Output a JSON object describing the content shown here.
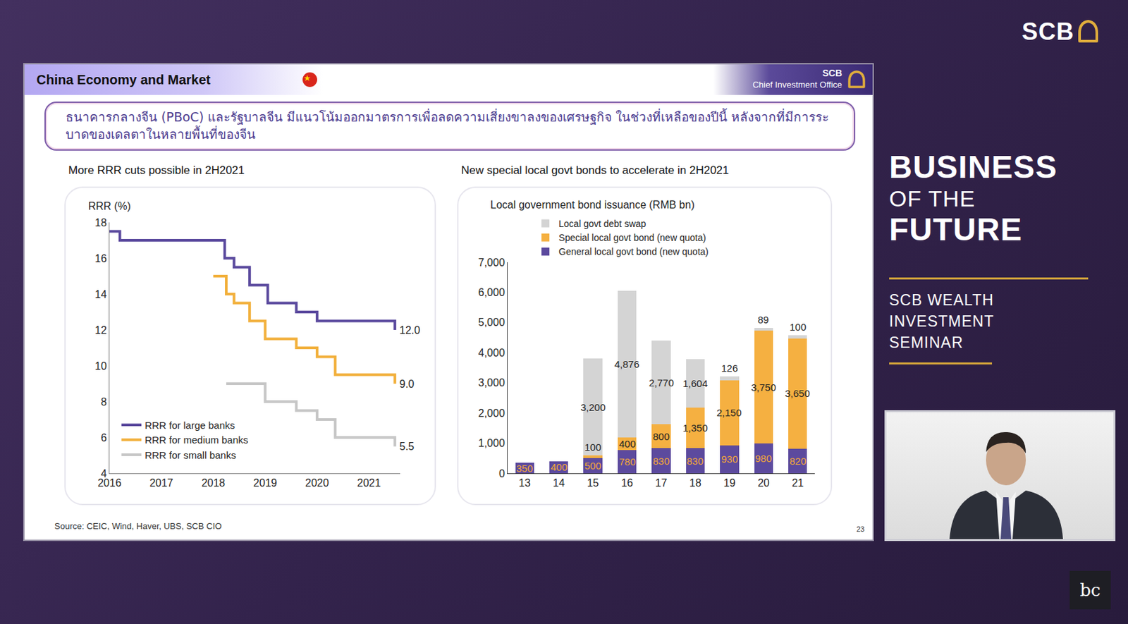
{
  "header": {
    "section": "China Economy and Market",
    "brand": "SCB",
    "office": "Chief Investment Office"
  },
  "summary": "ธนาคารกลางจีน (PBoC) และรัฐบาลจีน มีแนวโน้มออกมาตรการเพื่อลดความเสี่ยงขาลงของเศรษฐกิจ ในช่วงที่เหลือของปีนี้ หลังจากที่มีการระบาดของเดลตาในหลายพื้นที่ของจีน",
  "source": "Source: CEIC, Wind, Haver, UBS, SCB CIO",
  "page_number": "23",
  "sidebar": {
    "logo": "SCB",
    "title_lines": [
      "BUSINESS",
      "OF THE",
      "FUTURE"
    ],
    "subtitle_lines": [
      "SCB WEALTH",
      "INVESTMENT",
      "SEMINAR"
    ],
    "watermark": "bc"
  },
  "chart_data": [
    {
      "type": "line",
      "title": "More RRR cuts possible in 2H2021",
      "y_label": "RRR (%)",
      "xlim": [
        2016,
        2021.6
      ],
      "xticks": [
        2016,
        2017,
        2018,
        2019,
        2020,
        2021
      ],
      "ylim": [
        4,
        18
      ],
      "yticks": [
        4,
        6,
        8,
        10,
        12,
        14,
        16,
        18
      ],
      "grid": false,
      "legend": "bottom-left",
      "line_style": "step",
      "series": [
        {
          "name": "RRR for large banks",
          "color": "#5b4a9e",
          "x": [
            2016.0,
            2016.2,
            2018.22,
            2018.4,
            2018.7,
            2019.05,
            2019.6,
            2020.0,
            2021.5
          ],
          "values": [
            17.5,
            17.0,
            16.0,
            15.5,
            14.5,
            13.5,
            13.0,
            12.5,
            12.0
          ],
          "value_labels": [
            null,
            null,
            null,
            null,
            null,
            null,
            null,
            null,
            "12.0"
          ]
        },
        {
          "name": "RRR for medium banks",
          "color": "#f2b03c",
          "x": [
            2018.0,
            2018.25,
            2018.4,
            2018.7,
            2019.0,
            2019.6,
            2020.0,
            2020.35,
            2021.5
          ],
          "values": [
            15.0,
            14.0,
            13.5,
            12.5,
            11.5,
            11.0,
            10.5,
            9.5,
            9.0
          ],
          "value_labels": [
            null,
            null,
            null,
            null,
            null,
            null,
            null,
            null,
            "9.0"
          ]
        },
        {
          "name": "RRR for small banks",
          "color": "#c6c6c6",
          "x": [
            2018.25,
            2019.0,
            2019.6,
            2020.0,
            2020.35,
            2021.5
          ],
          "values": [
            9.0,
            8.0,
            7.5,
            7.0,
            6.0,
            5.5
          ],
          "value_labels": [
            null,
            null,
            null,
            null,
            null,
            "5.5"
          ]
        }
      ]
    },
    {
      "type": "bar",
      "stacked": true,
      "title": "New special local govt bonds to accelerate in 2H2021",
      "y_label": "Local government bond issuance (RMB bn)",
      "categories": [
        "13",
        "14",
        "15",
        "16",
        "17",
        "18",
        "19",
        "20",
        "21"
      ],
      "ylim": [
        0,
        7000
      ],
      "yticks": [
        0,
        {
          "value": 1000,
          "label": "1,000"
        },
        {
          "value": 2000,
          "label": "2,000"
        },
        {
          "value": 3000,
          "label": "3,000"
        },
        {
          "value": 4000,
          "label": "4,000"
        },
        {
          "value": 5000,
          "label": "5,000"
        },
        {
          "value": 6000,
          "label": "6,000"
        },
        {
          "value": 7000,
          "label": "7,000"
        }
      ],
      "grid": false,
      "legend": "top-left",
      "data_labels": true,
      "series": [
        {
          "name": "General local govt bond (new quota)",
          "color": "#5c4a9e",
          "values": [
            350,
            400,
            500,
            780,
            830,
            830,
            930,
            980,
            820
          ]
        },
        {
          "name": "Special local govt bond (new quota)",
          "color": "#f5b041",
          "values": [
            null,
            null,
            100,
            400,
            800,
            1350,
            2150,
            3750,
            3650
          ],
          "value_labels": [
            null,
            null,
            "100",
            "400",
            "800",
            "1,350",
            "2,150",
            "3,750",
            "3,650"
          ]
        },
        {
          "name": "Local govt debt swap",
          "color": "#d4d4d4",
          "values": [
            null,
            null,
            3200,
            4876,
            2770,
            1604,
            126,
            89,
            100
          ],
          "value_labels": [
            null,
            null,
            "3,200",
            "4,876",
            "2,770",
            "1,604",
            "126",
            "89",
            "100"
          ]
        }
      ]
    }
  ]
}
